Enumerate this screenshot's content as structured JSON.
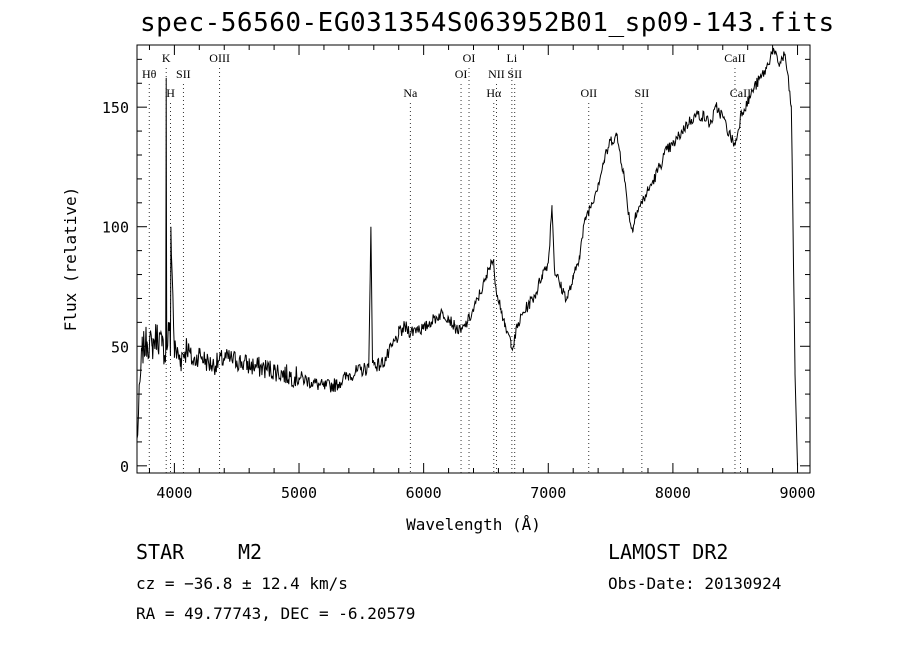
{
  "title": "spec-56560-EG031354S063952B01_sp09-143.fits",
  "info": {
    "object_class": "STAR",
    "subclass": "M2",
    "survey": "LAMOST DR2",
    "cz": "cz = −36.8 ± 12.4 km/s",
    "obs_date": "Obs-Date: 20130924",
    "radec": "RA =  49.77743, DEC =  -6.20579"
  },
  "chart_data": {
    "type": "line",
    "title": "spec-56560-EG031354S063952B01_sp09-143.fits",
    "xlabel": "Wavelength (Å)",
    "ylabel": "Flux (relative)",
    "xlim": [
      3700,
      9100
    ],
    "ylim": [
      -3,
      176
    ],
    "xticks": [
      4000,
      5000,
      6000,
      7000,
      8000,
      9000
    ],
    "yticks": [
      0,
      50,
      100,
      150
    ],
    "grid": false,
    "series": [
      {
        "x": [
          3700,
          3740,
          3780,
          3820,
          3860,
          3900,
          3930,
          3934,
          3938,
          3960,
          3968,
          3972,
          4000,
          4050,
          4100,
          4150,
          4200,
          4250,
          4300,
          4350,
          4400,
          4500,
          4600,
          4700,
          4800,
          4900,
          5000,
          5100,
          5200,
          5300,
          5400,
          5500,
          5560,
          5577,
          5590,
          5650,
          5700,
          5750,
          5800,
          5850,
          5900,
          5950,
          6000,
          6050,
          6100,
          6150,
          6200,
          6250,
          6300,
          6350,
          6400,
          6450,
          6500,
          6540,
          6563,
          6580,
          6620,
          6650,
          6700,
          6720,
          6750,
          6800,
          6850,
          6900,
          6950,
          7000,
          7030,
          7050,
          7100,
          7150,
          7200,
          7250,
          7300,
          7350,
          7400,
          7450,
          7500,
          7550,
          7600,
          7650,
          7680,
          7700,
          7750,
          7800,
          7850,
          7900,
          7950,
          8000,
          8050,
          8100,
          8150,
          8200,
          8250,
          8300,
          8350,
          8400,
          8450,
          8500,
          8550,
          8600,
          8650,
          8700,
          8750,
          8800,
          8850,
          8900,
          8950,
          8980,
          9000
        ],
        "y": [
          10,
          48,
          52,
          50,
          55,
          50,
          48,
          160,
          49,
          60,
          46,
          100,
          48,
          45,
          50,
          43,
          47,
          44,
          42,
          43,
          45,
          44,
          42,
          41,
          40,
          38,
          37,
          35,
          33,
          34,
          38,
          40,
          41,
          100,
          43,
          42,
          45,
          50,
          55,
          58,
          56,
          58,
          57,
          60,
          62,
          64,
          62,
          58,
          56,
          60,
          65,
          72,
          78,
          86,
          84,
          75,
          66,
          58,
          52,
          50,
          58,
          64,
          68,
          72,
          80,
          85,
          109,
          82,
          75,
          70,
          78,
          88,
          104,
          110,
          118,
          128,
          136,
          138,
          124,
          104,
          98,
          106,
          110,
          115,
          120,
          126,
          132,
          134,
          138,
          142,
          145,
          147,
          146,
          143,
          150,
          146,
          139,
          134,
          148,
          152,
          158,
          162,
          166,
          174,
          168,
          172,
          150,
          40,
          0
        ]
      }
    ],
    "lines": [
      {
        "label": "Hθ",
        "wavelength": 3798,
        "row": 1
      },
      {
        "label": "K",
        "wavelength": 3934,
        "row": 0
      },
      {
        "label": "H",
        "wavelength": 3969,
        "row": 2
      },
      {
        "label": "SII",
        "wavelength": 4072,
        "row": 1
      },
      {
        "label": "OIII",
        "wavelength": 4363,
        "row": 0
      },
      {
        "label": "Na",
        "wavelength": 5893,
        "row": 2
      },
      {
        "label": "OI",
        "wavelength": 6300,
        "row": 1
      },
      {
        "label": "OI",
        "wavelength": 6364,
        "row": 0
      },
      {
        "label": "Hα",
        "wavelength": 6563,
        "row": 2
      },
      {
        "label": "NII",
        "wavelength": 6584,
        "row": 1
      },
      {
        "label": "Li",
        "wavelength": 6708,
        "row": 0
      },
      {
        "label": "SII",
        "wavelength": 6731,
        "row": 1
      },
      {
        "label": "OII",
        "wavelength": 7325,
        "row": 2
      },
      {
        "label": "SII",
        "wavelength": 7751,
        "row": 2
      },
      {
        "label": "CaII",
        "wavelength": 8498,
        "row": 0
      },
      {
        "label": "CaII",
        "wavelength": 8542,
        "row": 2
      }
    ]
  }
}
